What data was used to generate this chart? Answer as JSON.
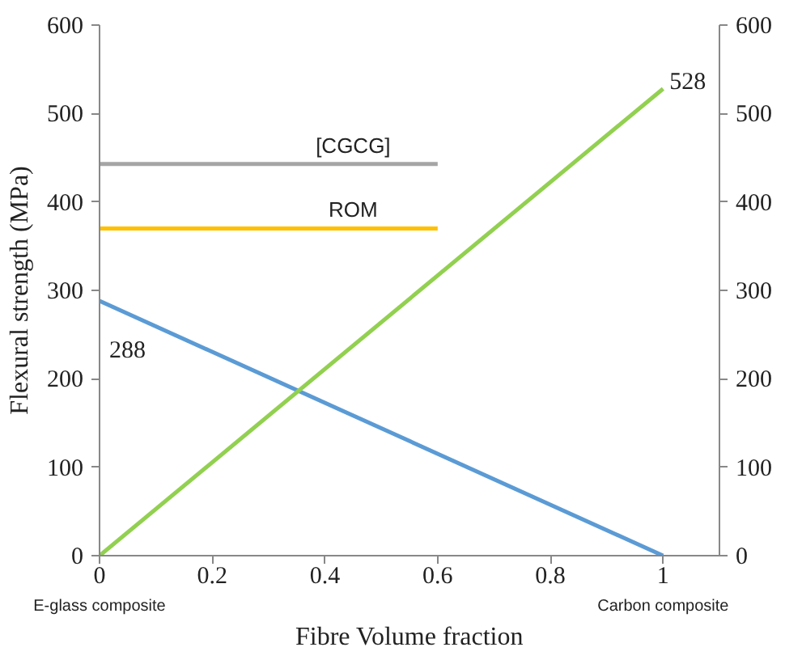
{
  "chart_data": {
    "type": "line",
    "xlabel": "Fibre Volume fraction",
    "ylabel": "Flexural strength (MPa)",
    "xlim": [
      0,
      1.1
    ],
    "xticks": [
      0,
      0.2,
      0.4,
      0.6,
      0.8,
      1
    ],
    "ylim": [
      0,
      600
    ],
    "yticks": [
      0,
      100,
      200,
      300,
      400,
      500,
      600
    ],
    "y2lim": [
      0,
      600
    ],
    "y2ticks": [
      0,
      100,
      200,
      300,
      400,
      500,
      600
    ],
    "series": [
      {
        "color": "#5b9bd5",
        "x": [
          0,
          1
        ],
        "values": [
          288,
          0
        ],
        "value_labels": [
          "288",
          null
        ]
      },
      {
        "color": "#92d050",
        "x": [
          0,
          1
        ],
        "values": [
          0,
          528
        ],
        "value_labels": [
          null,
          "528"
        ]
      },
      {
        "name": "[CGCG]",
        "color": "#a5a5a5",
        "x": [
          0,
          0.6
        ],
        "values": [
          443,
          443
        ]
      },
      {
        "name": "ROM",
        "color": "#ffc000",
        "x": [
          0,
          0.6
        ],
        "values": [
          370,
          370
        ]
      }
    ],
    "annotations": [
      {
        "text": "E-glass composite",
        "x": 0,
        "y": 0
      },
      {
        "text": "Carbon composite",
        "x": 1,
        "y": 0
      }
    ],
    "grid": false,
    "legend": false
  }
}
